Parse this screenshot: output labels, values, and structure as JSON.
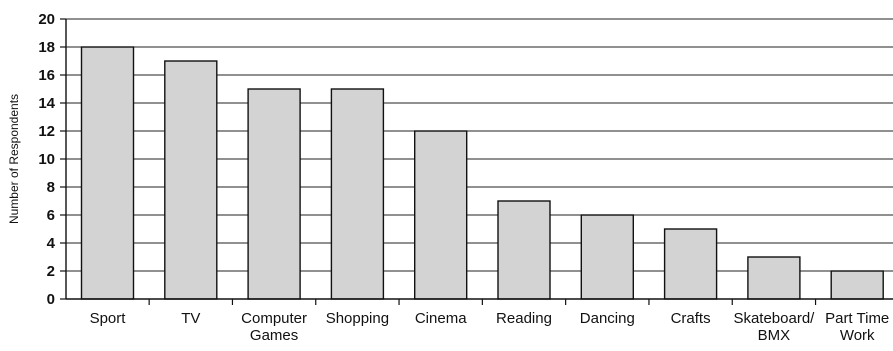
{
  "chart_data": {
    "type": "bar",
    "title": "",
    "xlabel": "",
    "ylabel": "Number of Respondents",
    "ylim": [
      0,
      20
    ],
    "yticks": [
      0,
      2,
      4,
      6,
      8,
      10,
      12,
      14,
      16,
      18,
      20
    ],
    "grid": true,
    "legend": "none",
    "categories": [
      [
        "Sport"
      ],
      [
        "TV"
      ],
      [
        "Computer",
        "Games"
      ],
      [
        "Shopping"
      ],
      [
        "Cinema"
      ],
      [
        "Reading"
      ],
      [
        "Dancing"
      ],
      [
        "Crafts"
      ],
      [
        "Skateboard/",
        "BMX"
      ],
      [
        "Part Time",
        "Work"
      ]
    ],
    "values": [
      18,
      17,
      15,
      15,
      12,
      7,
      6,
      5,
      3,
      2
    ],
    "colors": {
      "bar_fill": "#d3d3d3",
      "bar_stroke": "#111111",
      "grid": "#222222",
      "axis": "#111111"
    }
  }
}
